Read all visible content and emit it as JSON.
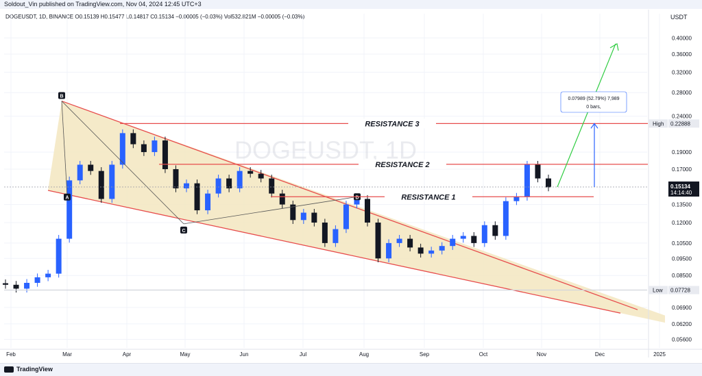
{
  "header": {
    "publisher_line": "Soldout_Vin published on TradingView.com, Nov 04, 2024 12:45 UTC+3",
    "symbol_line": "DOGEUSDT, 1D, BINANCE  O0.15139  H0.15477  L0.14817  C0.15134  −0.00005 (−0.03%)  Vol532.821M  −0.00005 (−0.03%)",
    "unit": "USDT"
  },
  "footer": {
    "logo_text": "TradingView"
  },
  "colors": {
    "up": "#2962ff",
    "down": "#131722",
    "resistance": "#e74c4c",
    "wedge_fill": "#f3e6c0",
    "projection_green": "#2ecc40",
    "projection_blue": "#2962ff"
  },
  "chart_data": {
    "type": "candlestick",
    "symbol": "DOGEUSDT",
    "timeframe": "1D",
    "exchange": "BINANCE",
    "watermark": "DOGEUSDT, 1D",
    "y_scale": "log",
    "ylim": [
      0.053,
      0.44
    ],
    "x_tick_labels": [
      "Feb",
      "Mar",
      "Apr",
      "May",
      "Jun",
      "Jul",
      "Aug",
      "Sep",
      "Oct",
      "Nov",
      "Dec",
      "2025"
    ],
    "y_ticks": [
      0.4,
      0.36,
      0.32,
      0.28,
      0.24,
      0.19,
      0.17,
      0.135,
      0.12,
      0.105,
      0.095,
      0.085,
      0.069,
      0.062,
      0.056
    ],
    "price_labels": {
      "high": {
        "label": "High",
        "value": "0.22888"
      },
      "low": {
        "label": "Low",
        "value": "0.07728"
      },
      "last": {
        "value": "0.15134",
        "countdown": "14:14:40"
      }
    },
    "close_series": [
      {
        "month": "Feb",
        "close": 0.08
      },
      {
        "month": "Feb",
        "close": 0.078
      },
      {
        "month": "Feb",
        "close": 0.081
      },
      {
        "month": "Feb",
        "close": 0.084
      },
      {
        "month": "Feb",
        "close": 0.086
      },
      {
        "month": "Mar",
        "close": 0.108
      },
      {
        "month": "Mar",
        "close": 0.158
      },
      {
        "month": "Mar",
        "close": 0.175
      },
      {
        "month": "Mar",
        "close": 0.168
      },
      {
        "month": "Mar",
        "close": 0.14
      },
      {
        "month": "Mar",
        "close": 0.175
      },
      {
        "month": "Apr",
        "close": 0.215
      },
      {
        "month": "Apr",
        "close": 0.2
      },
      {
        "month": "Apr",
        "close": 0.19
      },
      {
        "month": "Apr",
        "close": 0.205
      },
      {
        "month": "Apr",
        "close": 0.17
      },
      {
        "month": "Apr",
        "close": 0.15
      },
      {
        "month": "Apr",
        "close": 0.155
      },
      {
        "month": "May",
        "close": 0.13
      },
      {
        "month": "May",
        "close": 0.145
      },
      {
        "month": "May",
        "close": 0.16
      },
      {
        "month": "May",
        "close": 0.15
      },
      {
        "month": "May",
        "close": 0.168
      },
      {
        "month": "Jun",
        "close": 0.165
      },
      {
        "month": "Jun",
        "close": 0.16
      },
      {
        "month": "Jun",
        "close": 0.145
      },
      {
        "month": "Jun",
        "close": 0.135
      },
      {
        "month": "Jun",
        "close": 0.122
      },
      {
        "month": "Jul",
        "close": 0.128
      },
      {
        "month": "Jul",
        "close": 0.12
      },
      {
        "month": "Jul",
        "close": 0.105
      },
      {
        "month": "Jul",
        "close": 0.115
      },
      {
        "month": "Jul",
        "close": 0.135
      },
      {
        "month": "Jul",
        "close": 0.14
      },
      {
        "month": "Aug",
        "close": 0.12
      },
      {
        "month": "Aug",
        "close": 0.095
      },
      {
        "month": "Aug",
        "close": 0.105
      },
      {
        "month": "Aug",
        "close": 0.108
      },
      {
        "month": "Aug",
        "close": 0.102
      },
      {
        "month": "Sep",
        "close": 0.098
      },
      {
        "month": "Sep",
        "close": 0.1
      },
      {
        "month": "Sep",
        "close": 0.103
      },
      {
        "month": "Sep",
        "close": 0.108
      },
      {
        "month": "Sep",
        "close": 0.11
      },
      {
        "month": "Oct",
        "close": 0.105
      },
      {
        "month": "Oct",
        "close": 0.118
      },
      {
        "month": "Oct",
        "close": 0.11
      },
      {
        "month": "Oct",
        "close": 0.138
      },
      {
        "month": "Oct",
        "close": 0.142
      },
      {
        "month": "Nov",
        "close": 0.175
      },
      {
        "month": "Nov",
        "close": 0.16
      },
      {
        "month": "Nov",
        "close": 0.151
      }
    ],
    "annotations": {
      "resistances": [
        {
          "label": "RESISTANCE 3",
          "price": 0.2289
        },
        {
          "label": "RESISTANCE 2",
          "price": 0.1755
        },
        {
          "label": "RESISTANCE 1",
          "price": 0.142
        }
      ],
      "points": [
        {
          "label": "B",
          "price": 0.265
        },
        {
          "label": "A",
          "price": 0.143
        },
        {
          "label": "C",
          "price": 0.119
        },
        {
          "label": "D",
          "price": 0.142
        }
      ],
      "measure_label_line1": "0.07989 (52.79%) 7,989",
      "measure_label_line2": "0 bars,",
      "projection_target": 0.385
    }
  }
}
